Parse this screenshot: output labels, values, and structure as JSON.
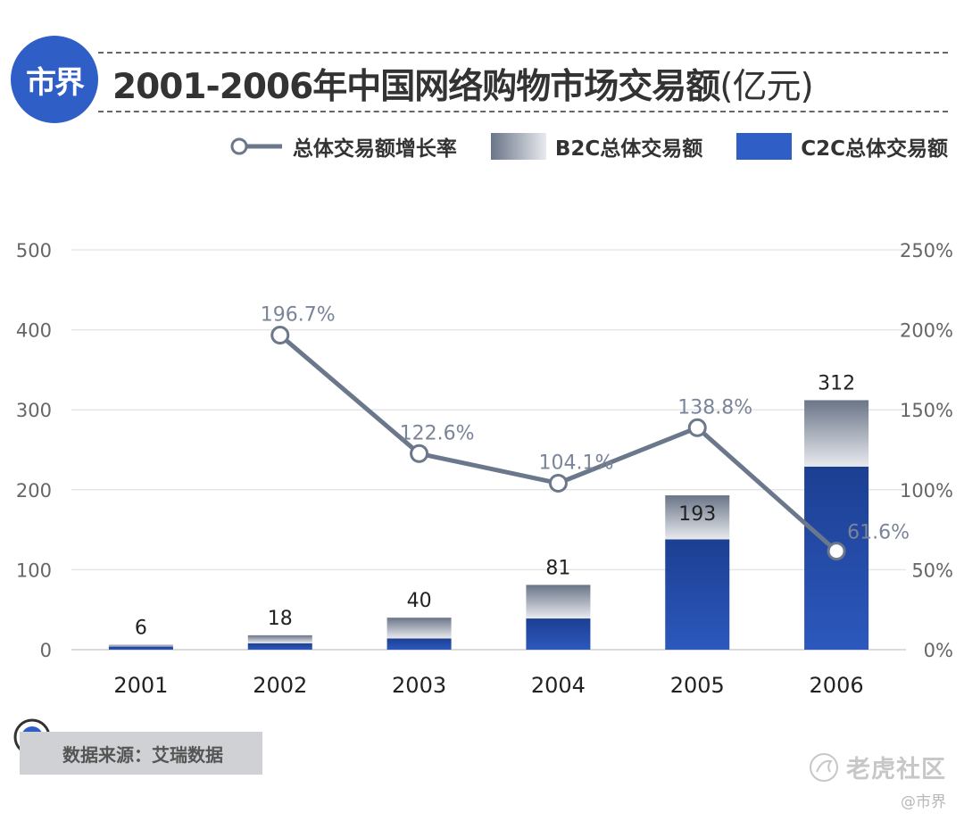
{
  "header": {
    "logo_text": "市界",
    "title": "2001-2006年中国网络购物市场交易额",
    "title_unit": "(亿元)"
  },
  "legend": {
    "growth_label": "总体交易额增长率",
    "b2c_label": "B2C总体交易额",
    "c2c_label": "C2C总体交易额"
  },
  "colors": {
    "accent": "#2f5fc6",
    "c2c_top": "#2c58bd",
    "c2c_bottom": "#1c3f92",
    "b2c_light": "#e8eaee",
    "b2c_dark": "#6a7588",
    "line": "#6b778b",
    "label_line": "#7a8599"
  },
  "chart_data": {
    "type": "bar",
    "stacked": true,
    "title": "2001-2006年中国网络购物市场交易额(亿元)",
    "categories": [
      "2001",
      "2002",
      "2003",
      "2004",
      "2005",
      "2006"
    ],
    "totals": [
      6,
      18,
      40,
      81,
      193,
      312
    ],
    "total_labels": [
      "6",
      "18",
      "40",
      "81",
      "193",
      "312"
    ],
    "series": [
      {
        "name": "C2C总体交易额",
        "values": [
          4,
          8,
          14,
          39,
          138,
          229
        ]
      },
      {
        "name": "B2C总体交易额",
        "values": [
          2,
          10,
          26,
          42,
          55,
          83
        ]
      }
    ],
    "line_series": {
      "name": "总体交易额增长率",
      "x": [
        "2002",
        "2003",
        "2004",
        "2005",
        "2006"
      ],
      "values": [
        196.7,
        122.6,
        104.1,
        138.8,
        61.6
      ],
      "labels": [
        "196.7%",
        "122.6%",
        "104.1%",
        "138.8%",
        "61.6%"
      ]
    },
    "y_left": {
      "range": [
        0,
        500
      ],
      "ticks": [
        0,
        100,
        200,
        300,
        400,
        500
      ],
      "tick_labels": [
        "0",
        "100",
        "200",
        "300",
        "400",
        "500"
      ]
    },
    "y_right": {
      "range": [
        0,
        250
      ],
      "ticks": [
        0,
        50,
        100,
        150,
        200,
        250
      ],
      "tick_labels": [
        "0%",
        "50%",
        "100%",
        "150%",
        "200%",
        "250%"
      ]
    },
    "xlabel": "",
    "ylabel": "",
    "grid": true,
    "legend_position": "top-right"
  },
  "footer": {
    "source": "数据来源：艾瑞数据",
    "watermark": "老虎社区",
    "credit": "@市界"
  }
}
